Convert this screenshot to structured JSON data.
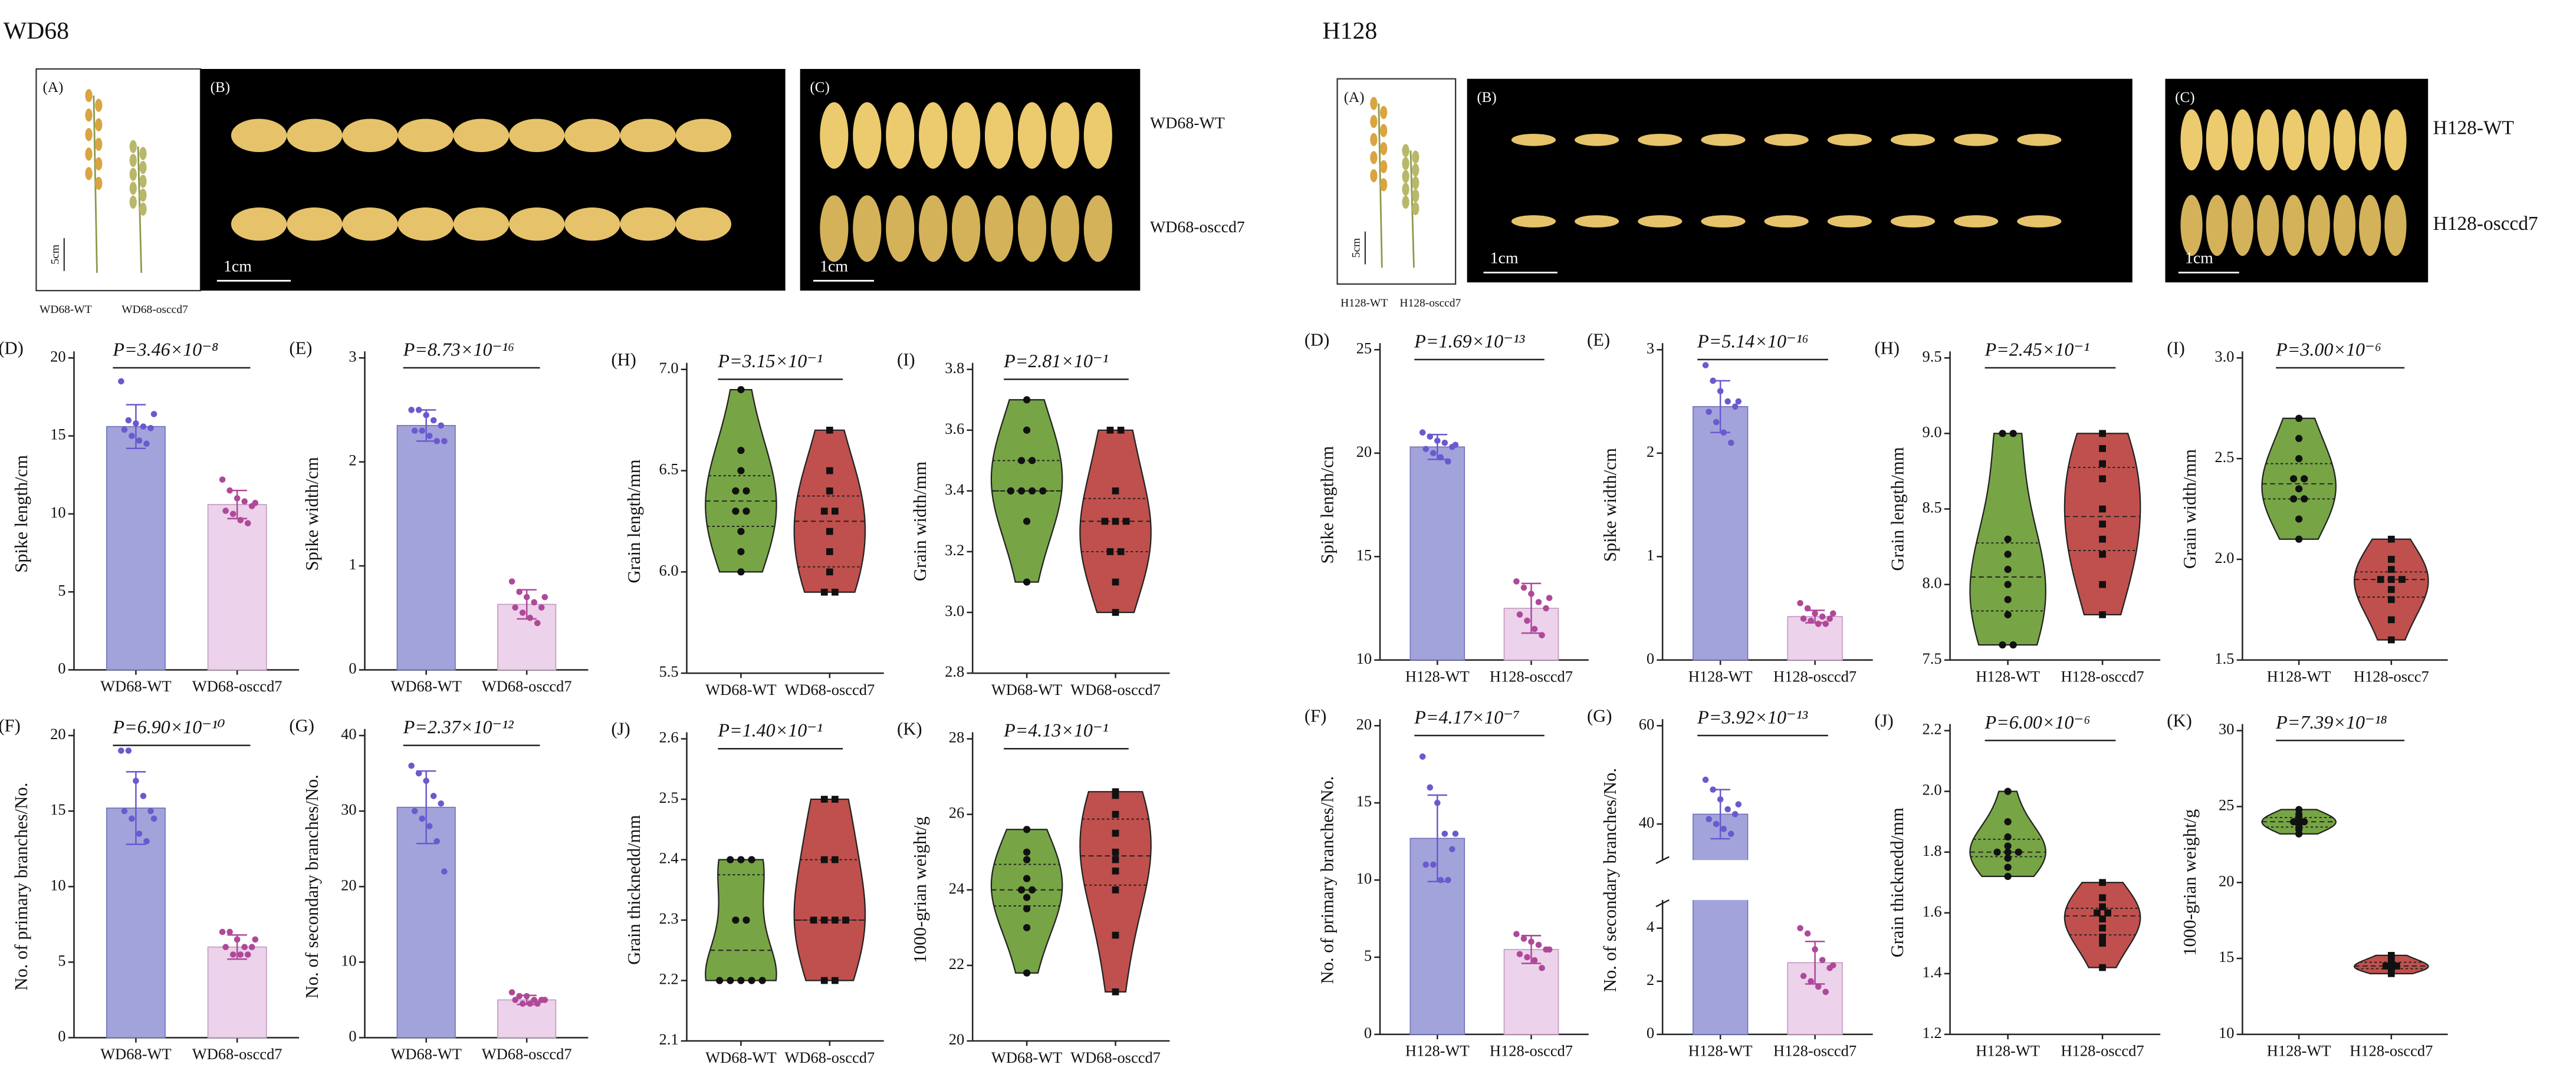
{
  "figures": [
    {
      "title": "WD68",
      "photos": {
        "labels": [
          "(A)",
          "(B)",
          "(C)"
        ],
        "scales": [
          "5cm",
          "1cm",
          "1cm"
        ],
        "captions": [
          "WD68-WT",
          "WD68-osccd7"
        ],
        "rows": [
          "WD68-WT",
          "WD68-osccd7"
        ]
      }
    },
    {
      "title": "H128",
      "photos": {
        "labels": [
          "(A)",
          "(B)",
          "(C)"
        ],
        "scales": [
          "5cm",
          "1cm",
          "1cm"
        ],
        "captions": [
          "H128-WT",
          "H128-osccd7"
        ],
        "rows": [
          "H128-WT",
          "H128-osccd7"
        ]
      }
    }
  ],
  "chart_data": [
    {
      "type": "bar",
      "panel": "(D)",
      "ylabel": "Spike length/cm",
      "annotation": "P=3.46×10⁻⁸",
      "categories": [
        "WD68-WT",
        "WD68-osccd7"
      ],
      "values": [
        15.6,
        10.6
      ],
      "errors": [
        1.4,
        0.9
      ],
      "points": [
        [
          18.5,
          16,
          15.8,
          15.6,
          15.5,
          15.4,
          15,
          14.7,
          14.5,
          16.4
        ],
        [
          12.2,
          11.5,
          11,
          10.8,
          10.5,
          10.2,
          10,
          9.6,
          9.4,
          10.7
        ]
      ],
      "colors": [
        "#a3a3dc",
        "#ecd2ea"
      ],
      "point_colors": [
        "#6a5acd",
        "#b0489a"
      ],
      "ylim": [
        0,
        20
      ],
      "yticks": [
        0,
        5,
        10,
        15,
        20
      ]
    },
    {
      "type": "bar",
      "panel": "(E)",
      "ylabel": "Spike width/cm",
      "annotation": "P=8.73×10⁻¹⁶",
      "categories": [
        "WD68-WT",
        "WD68-osccd7"
      ],
      "values": [
        2.35,
        0.63
      ],
      "errors": [
        0.15,
        0.14
      ],
      "points": [
        [
          2.5,
          2.5,
          2.45,
          2.4,
          2.35,
          2.3,
          2.3,
          2.25,
          2.2,
          2.2
        ],
        [
          0.85,
          0.75,
          0.7,
          0.65,
          0.6,
          0.6,
          0.55,
          0.5,
          0.45,
          0.7
        ]
      ],
      "colors": [
        "#a3a3dc",
        "#ecd2ea"
      ],
      "point_colors": [
        "#6a5acd",
        "#b0489a"
      ],
      "ylim": [
        0,
        3
      ],
      "yticks": [
        0,
        1,
        2,
        3
      ]
    },
    {
      "type": "violin",
      "panel": "(H)",
      "ylabel": "Grain length/mm",
      "annotation": "P=3.15×10⁻¹",
      "categories": [
        "WD68-WT",
        "WD68-osccd7"
      ],
      "points": [
        [
          6.9,
          6.6,
          6.5,
          6.4,
          6.4,
          6.3,
          6.3,
          6.2,
          6.1,
          6.0
        ],
        [
          6.7,
          6.5,
          6.4,
          6.3,
          6.3,
          6.2,
          6.1,
          6.0,
          5.9,
          5.9
        ]
      ],
      "colors": [
        "#77a545",
        "#c0504d"
      ],
      "ylim": [
        5.5,
        7.0
      ],
      "yticks": [
        5.5,
        {
          "value": 6,
          "label": "6.0"
        },
        6.5,
        {
          "value": 7,
          "label": "7.0"
        }
      ]
    },
    {
      "type": "violin",
      "panel": "(I)",
      "ylabel": "Grain width/mm",
      "annotation": "P=2.81×10⁻¹",
      "categories": [
        "WD68-WT",
        "WD68-osccd7"
      ],
      "points": [
        [
          3.7,
          3.6,
          3.5,
          3.5,
          3.4,
          3.4,
          3.4,
          3.4,
          3.3,
          3.1
        ],
        [
          3.6,
          3.6,
          3.4,
          3.3,
          3.3,
          3.3,
          3.2,
          3.2,
          3.1,
          3.0
        ]
      ],
      "colors": [
        "#77a545",
        "#c0504d"
      ],
      "ylim": [
        2.8,
        3.8
      ],
      "yticks": [
        2.8,
        {
          "value": 3,
          "label": "3.0"
        },
        3.2,
        3.4,
        3.6,
        3.8
      ]
    },
    {
      "type": "bar",
      "panel": "(F)",
      "ylabel": "No. of primary branches/No.",
      "annotation": "P=6.90×10⁻¹⁰",
      "categories": [
        "WD68-WT",
        "WD68-osccd7"
      ],
      "values": [
        15.2,
        6.0
      ],
      "errors": [
        2.4,
        0.8
      ],
      "points": [
        [
          19,
          19,
          17,
          16,
          15,
          15,
          14.5,
          13.5,
          13,
          14.5
        ],
        [
          7,
          7,
          6.5,
          6,
          6,
          6,
          5.5,
          5.5,
          5.5,
          6.5
        ]
      ],
      "colors": [
        "#a3a3dc",
        "#ecd2ea"
      ],
      "point_colors": [
        "#6a5acd",
        "#b0489a"
      ],
      "ylim": [
        0,
        20
      ],
      "yticks": [
        0,
        5,
        10,
        15,
        20
      ]
    },
    {
      "type": "bar",
      "panel": "(G)",
      "ylabel": "No. of secondary branches/No.",
      "annotation": "P=2.37×10⁻¹²",
      "categories": [
        "WD68-WT",
        "WD68-osccd7"
      ],
      "values": [
        30.5,
        5.0
      ],
      "errors": [
        4.8,
        0.6
      ],
      "points": [
        [
          36,
          35,
          34,
          32,
          31,
          30,
          29,
          28,
          26,
          22
        ],
        [
          6,
          5.5,
          5.5,
          5,
          5,
          5,
          4.5,
          4.5,
          4.5,
          5
        ]
      ],
      "colors": [
        "#a3a3dc",
        "#ecd2ea"
      ],
      "point_colors": [
        "#6a5acd",
        "#b0489a"
      ],
      "ylim": [
        0,
        40
      ],
      "yticks": [
        0,
        10,
        20,
        30,
        40
      ]
    },
    {
      "type": "violin",
      "panel": "(J)",
      "ylabel": "Grain thicknedd/mm",
      "annotation": "P=1.40×10⁻¹",
      "categories": [
        "WD68-WT",
        "WD68-osccd7"
      ],
      "points": [
        [
          2.4,
          2.4,
          2.3,
          2.2,
          2.2,
          2.2,
          2.2,
          2.2,
          2.3,
          2.4
        ],
        [
          2.5,
          2.5,
          2.4,
          2.4,
          2.3,
          2.3,
          2.3,
          2.3,
          2.2,
          2.2
        ]
      ],
      "colors": [
        "#77a545",
        "#c0504d"
      ],
      "ylim": [
        2.1,
        2.6
      ],
      "yticks": [
        2.1,
        2.2,
        2.3,
        2.4,
        2.5,
        2.6
      ]
    },
    {
      "type": "violin",
      "panel": "(K)",
      "ylabel": "1000-grian weight/g",
      "annotation": "P=4.13×10⁻¹",
      "categories": [
        "WD68-WT",
        "WD68-osccd7"
      ],
      "points": [
        [
          25.6,
          25,
          24.8,
          24.3,
          24,
          24,
          23.8,
          23.5,
          23,
          21.8
        ],
        [
          26.6,
          26.5,
          26,
          25.5,
          25,
          24.8,
          24.5,
          24,
          22.8,
          21.3
        ]
      ],
      "colors": [
        "#77a545",
        "#c0504d"
      ],
      "ylim": [
        20,
        28
      ],
      "yticks": [
        20,
        22,
        24,
        26,
        28
      ]
    },
    {
      "type": "bar",
      "panel": "(D)",
      "ylabel": "Spike length/cm",
      "annotation": "P=1.69×10⁻¹³",
      "categories": [
        "H128-WT",
        "H128-osccd7"
      ],
      "values": [
        20.3,
        12.5
      ],
      "errors": [
        0.6,
        1.2
      ],
      "points": [
        [
          21,
          20.8,
          20.6,
          20.5,
          20.3,
          20.2,
          20,
          19.8,
          19.6,
          20.4
        ],
        [
          13.8,
          13.5,
          13.2,
          12.8,
          12.5,
          12.2,
          11.9,
          11.5,
          11.2,
          13
        ]
      ],
      "colors": [
        "#a3a3dc",
        "#ecd2ea"
      ],
      "point_colors": [
        "#6a5acd",
        "#b0489a"
      ],
      "ylim": [
        10,
        25
      ],
      "yticks": [
        10,
        15,
        20,
        25
      ]
    },
    {
      "type": "bar",
      "panel": "(E)",
      "ylabel": "Spike width/cm",
      "annotation": "P=5.14×10⁻¹⁶",
      "categories": [
        "H128-WT",
        "H128-osccd7"
      ],
      "values": [
        2.45,
        0.42
      ],
      "errors": [
        0.25,
        0.06
      ],
      "points": [
        [
          2.85,
          2.7,
          2.6,
          2.5,
          2.45,
          2.4,
          2.3,
          2.2,
          2.1,
          2.5
        ],
        [
          0.55,
          0.5,
          0.45,
          0.42,
          0.4,
          0.4,
          0.38,
          0.35,
          0.35,
          0.45
        ]
      ],
      "colors": [
        "#a3a3dc",
        "#ecd2ea"
      ],
      "point_colors": [
        "#6a5acd",
        "#b0489a"
      ],
      "ylim": [
        0,
        3
      ],
      "yticks": [
        0,
        1,
        2,
        3
      ]
    },
    {
      "type": "violin",
      "panel": "(H)",
      "ylabel": "Grain length/mm",
      "annotation": "P=2.45×10⁻¹",
      "categories": [
        "H128-WT",
        "H128-osccd7"
      ],
      "points": [
        [
          9,
          9,
          8.3,
          8.1,
          8.0,
          7.9,
          7.8,
          7.6,
          7.6,
          8.2
        ],
        [
          9,
          8.9,
          8.8,
          8.7,
          8.5,
          8.4,
          8.3,
          8.2,
          8.0,
          7.8
        ]
      ],
      "colors": [
        "#77a545",
        "#c0504d"
      ],
      "ylim": [
        7.5,
        9.5
      ],
      "yticks": [
        7.5,
        {
          "value": 8,
          "label": "8.0"
        },
        8.5,
        {
          "value": 9,
          "label": "9.0"
        },
        9.5
      ]
    },
    {
      "type": "violin",
      "panel": "(I)",
      "ylabel": "Grain width/mm",
      "annotation": "P=3.00×10⁻⁶",
      "categories": [
        "H128-WT",
        "H128-oscc7"
      ],
      "points": [
        [
          2.7,
          2.6,
          2.5,
          2.4,
          2.35,
          2.3,
          2.3,
          2.2,
          2.1,
          2.4
        ],
        [
          2.1,
          2.0,
          1.95,
          1.9,
          1.9,
          1.9,
          1.85,
          1.8,
          1.7,
          1.6
        ]
      ],
      "colors": [
        "#77a545",
        "#c0504d"
      ],
      "ylim": [
        1.5,
        3.0
      ],
      "yticks": [
        1.5,
        {
          "value": 2,
          "label": "2.0"
        },
        2.5,
        {
          "value": 3,
          "label": "3.0"
        }
      ]
    },
    {
      "type": "bar",
      "panel": "(F)",
      "ylabel": "No. of primary branches/No.",
      "annotation": "P=4.17×10⁻⁷",
      "categories": [
        "H128-WT",
        "H128-osccd7"
      ],
      "values": [
        12.7,
        5.5
      ],
      "errors": [
        2.8,
        0.9
      ],
      "points": [
        [
          18,
          16,
          15,
          13,
          12,
          11,
          11,
          10,
          10,
          13
        ],
        [
          6.5,
          6.2,
          6,
          5.8,
          5.5,
          5.2,
          5,
          4.8,
          4.3,
          5.5
        ]
      ],
      "colors": [
        "#a3a3dc",
        "#ecd2ea"
      ],
      "point_colors": [
        "#6a5acd",
        "#b0489a"
      ],
      "ylim": [
        0,
        20
      ],
      "yticks": [
        0,
        5,
        10,
        15,
        20
      ]
    },
    {
      "type": "bar",
      "panel": "(G)",
      "ylabel": "No. of secondary branches/No.",
      "annotation": "P=3.92×10⁻¹³",
      "categories": [
        "H128-WT",
        "H128-osccd7"
      ],
      "values": [
        42,
        2.7
      ],
      "errors": [
        5,
        0.8
      ],
      "points": [
        [
          49,
          47,
          45,
          43,
          42,
          41,
          40,
          39,
          38,
          44
        ],
        [
          4,
          3.8,
          3.2,
          2.8,
          2.5,
          2.2,
          2,
          1.8,
          1.6,
          2.6
        ]
      ],
      "colors": [
        "#a3a3dc",
        "#ecd2ea"
      ],
      "point_colors": [
        "#6a5acd",
        "#b0489a"
      ],
      "ylim": [
        0,
        60
      ],
      "ybreak": [
        5,
        33
      ],
      "yticks": [
        0,
        2,
        4,
        40,
        60
      ]
    },
    {
      "type": "violin",
      "panel": "(J)",
      "ylabel": "Grain thicknedd/mm",
      "annotation": "P=6.00×10⁻⁶",
      "categories": [
        "H128-WT",
        "H128-osccd7"
      ],
      "points": [
        [
          2.0,
          1.9,
          1.85,
          1.82,
          1.8,
          1.8,
          1.8,
          1.78,
          1.75,
          1.72
        ],
        [
          1.7,
          1.65,
          1.62,
          1.6,
          1.6,
          1.58,
          1.55,
          1.52,
          1.5,
          1.42
        ]
      ],
      "colors": [
        "#77a545",
        "#c0504d"
      ],
      "ylim": [
        1.2,
        2.2
      ],
      "yticks": [
        1.2,
        1.4,
        1.6,
        1.8,
        {
          "value": 2,
          "label": "2.0"
        },
        2.2
      ]
    },
    {
      "type": "violin",
      "panel": "(K)",
      "ylabel": "1000-grian weight/g",
      "annotation": "P=7.39×10⁻¹⁸",
      "categories": [
        "H128-WT",
        "H128-osccd7"
      ],
      "points": [
        [
          24.8,
          24.5,
          24.3,
          24.2,
          24,
          23.8,
          23.6,
          23.5,
          23.2,
          24
        ],
        [
          15.2,
          15,
          14.8,
          14.6,
          14.5,
          14.4,
          14.3,
          14.2,
          14,
          14.5
        ]
      ],
      "colors": [
        "#77a545",
        "#c0504d"
      ],
      "ylim": [
        10,
        30
      ],
      "yticks": [
        10,
        15,
        20,
        25,
        30
      ]
    }
  ]
}
